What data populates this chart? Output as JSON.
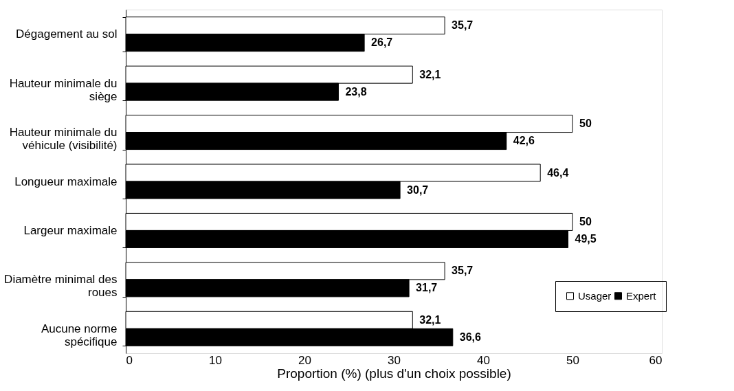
{
  "chart_data": {
    "type": "bar",
    "orientation": "horizontal",
    "xlabel": "Proportion (%) (plus d'un choix possible)",
    "categories": [
      "Dégagement au sol",
      "Hauteur minimale du\nsiège",
      "Hauteur minimale du\nvéhicule (visibilité)",
      "Longueur maximale",
      "Largeur maximale",
      "Diamètre minimal des\nroues",
      "Aucune norme\nspécifique"
    ],
    "series": [
      {
        "name": "Usager",
        "color": "#ffffff",
        "values": [
          35.7,
          32.1,
          50,
          46.4,
          50,
          35.7,
          32.1
        ],
        "value_labels": [
          "35,7",
          "32,1",
          "50",
          "46,4",
          "50",
          "35,7",
          "32,1"
        ]
      },
      {
        "name": "Expert",
        "color": "#000000",
        "values": [
          26.7,
          23.8,
          42.6,
          30.7,
          49.5,
          31.7,
          36.6
        ],
        "value_labels": [
          "26,7",
          "23,8",
          "42,6",
          "30,7",
          "49,5",
          "31,7",
          "36,6"
        ]
      }
    ],
    "xlim": [
      0,
      60
    ],
    "xticks": [
      0,
      10,
      20,
      30,
      40,
      50,
      60
    ],
    "grid": false,
    "legend": "right"
  }
}
